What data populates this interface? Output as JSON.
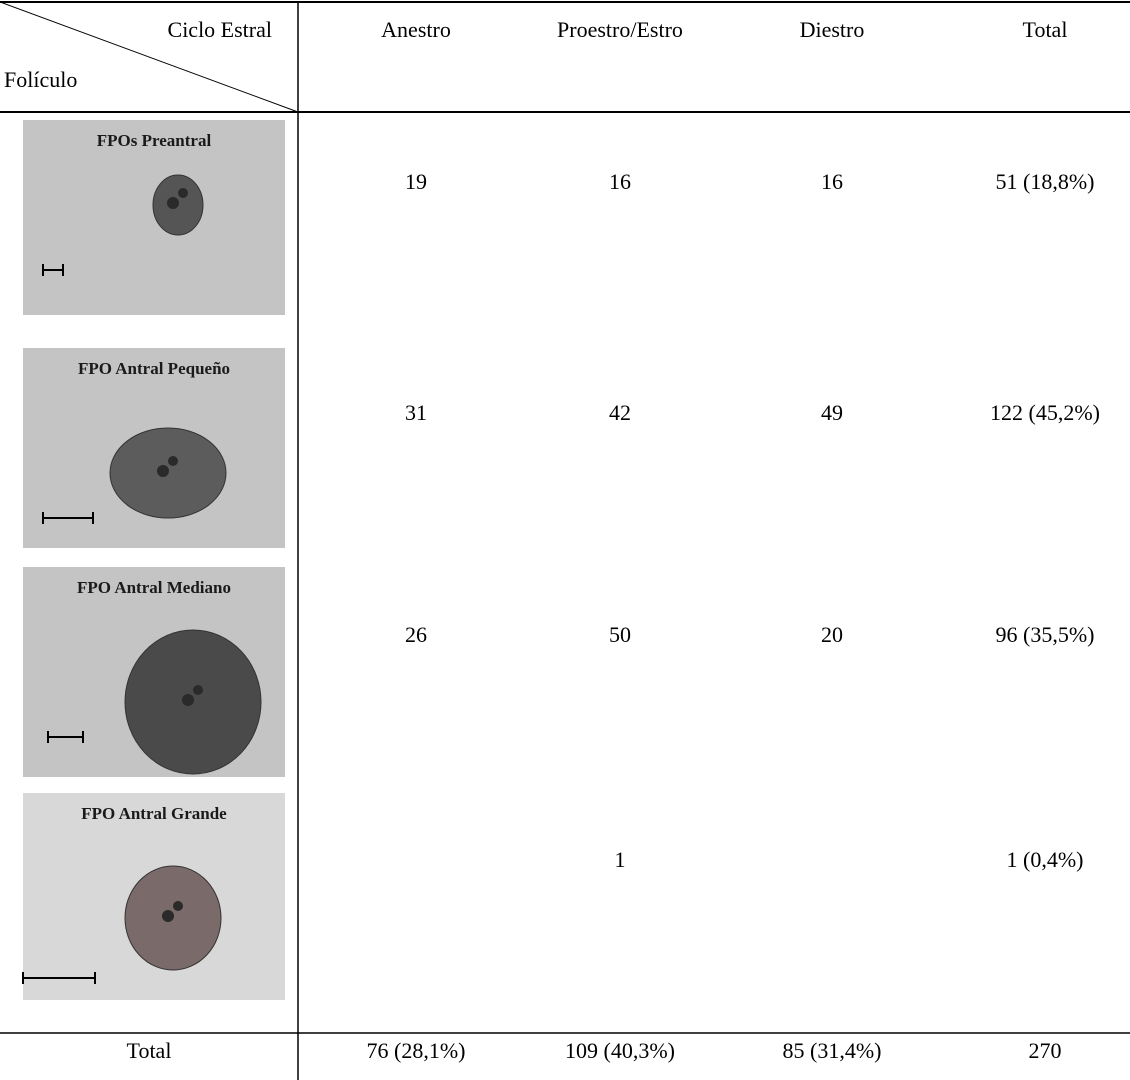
{
  "table": {
    "corner_top": "Ciclo Estral",
    "corner_bottom": "Folículo",
    "columns": [
      "Anestro",
      "Proestro/Estro",
      "Diestro",
      "Total"
    ],
    "rows": [
      {
        "image_label": "FPOs Preantral",
        "cells": [
          "19",
          "16",
          "16",
          "51 (18,8%)"
        ]
      },
      {
        "image_label": "FPO Antral Pequeño",
        "cells": [
          "31",
          "42",
          "49",
          "122 (45,2%)"
        ]
      },
      {
        "image_label": "FPO Antral Mediano",
        "cells": [
          "26",
          "50",
          "20",
          "96 (35,5%)"
        ]
      },
      {
        "image_label": "FPO Antral Grande",
        "cells": [
          null,
          "1",
          null,
          "1 (0,4%)"
        ]
      }
    ],
    "total_row": {
      "label": "Total",
      "cells": [
        "76 (28,1%)",
        "109 (40,3%)",
        "85 (31,4%)",
        "270"
      ]
    }
  }
}
